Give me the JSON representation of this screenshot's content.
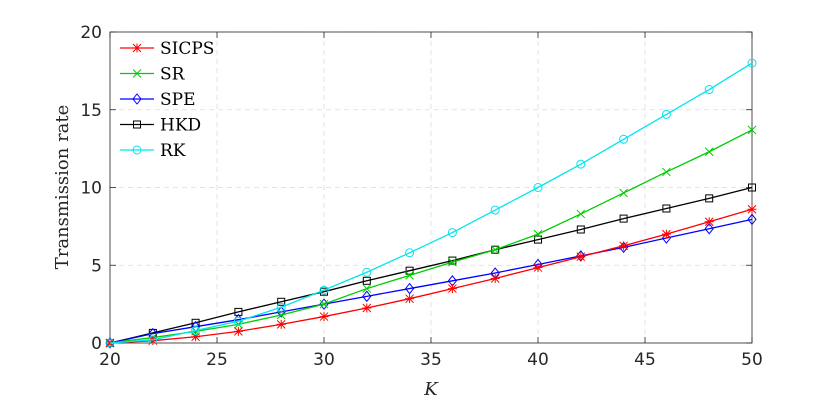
{
  "chart_data": {
    "type": "line",
    "title": "",
    "xlabel": "K",
    "ylabel": "Transmission rate",
    "xlim": [
      20,
      50
    ],
    "ylim": [
      0,
      20
    ],
    "xticks": [
      "20",
      "25",
      "30",
      "35",
      "40",
      "45",
      "50"
    ],
    "yticks": [
      "0",
      "5",
      "10",
      "15",
      "20"
    ],
    "grid": true,
    "legend_position": "top-left",
    "x": [
      20,
      22,
      24,
      26,
      28,
      30,
      32,
      34,
      36,
      38,
      40,
      42,
      44,
      46,
      48,
      50
    ],
    "series": [
      {
        "name": "SICPS",
        "color": "#ff0000",
        "marker": "asterisk",
        "values": [
          0,
          0.15,
          0.4,
          0.75,
          1.2,
          1.7,
          2.25,
          2.85,
          3.5,
          4.15,
          4.85,
          5.55,
          6.25,
          7.0,
          7.8,
          8.6
        ]
      },
      {
        "name": "SR",
        "color": "#00cc00",
        "marker": "x",
        "values": [
          0,
          0.35,
          0.75,
          1.2,
          1.8,
          2.5,
          3.5,
          4.35,
          5.2,
          6.0,
          7.0,
          8.3,
          9.65,
          11.0,
          12.3,
          13.7
        ]
      },
      {
        "name": "SPE",
        "color": "#0000ff",
        "marker": "diamond",
        "values": [
          0,
          0.6,
          1.05,
          1.5,
          2.0,
          2.5,
          3.0,
          3.5,
          4.0,
          4.5,
          5.05,
          5.6,
          6.15,
          6.75,
          7.35,
          7.95
        ]
      },
      {
        "name": "HKD",
        "color": "#000000",
        "marker": "square",
        "values": [
          0,
          0.65,
          1.3,
          2.0,
          2.65,
          3.3,
          4.0,
          4.65,
          5.3,
          6.0,
          6.65,
          7.3,
          8.0,
          8.65,
          9.3,
          10.0
        ]
      },
      {
        "name": "RK",
        "color": "#00e5ee",
        "marker": "circle",
        "values": [
          0,
          0.2,
          0.8,
          1.4,
          2.3,
          3.4,
          4.55,
          5.8,
          7.1,
          8.55,
          10.0,
          11.5,
          13.1,
          14.7,
          16.3,
          18.0
        ]
      }
    ]
  }
}
